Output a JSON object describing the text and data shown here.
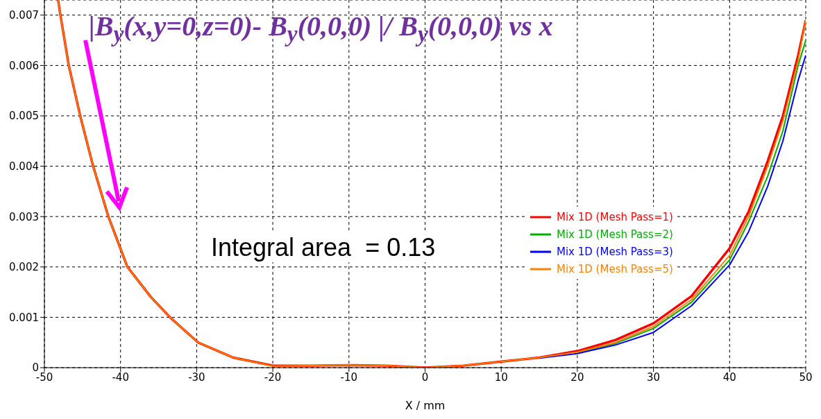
{
  "chart_data": {
    "type": "line",
    "title": "|B$_{y}$(x,y=0,z=0)- B$_{y}$(0,0,0) |/ B$_{y}$(0,0,0) vs x",
    "xlabel": "X / mm",
    "annotations": [
      "Integral area  = 0.13"
    ],
    "x": [
      -48.2,
      -47.9,
      -46.8,
      -45.3,
      -43.6,
      -41.6,
      -39.1,
      -36,
      -33.5,
      -29.8,
      -25.2,
      -20,
      -15,
      -10,
      -5,
      0,
      5,
      10,
      15,
      20,
      25,
      30,
      35,
      40,
      42.5,
      45,
      47,
      49,
      50
    ],
    "series": [
      {
        "name": "Mix 1D (Mesh Pass=1)",
        "color": "#ff0000",
        "values": [
          0.0073,
          0.007,
          0.006,
          0.005,
          0.004,
          0.003,
          0.002,
          0.0014,
          0.001,
          0.0005,
          0.0002,
          4e-05,
          4e-05,
          5e-05,
          4e-05,
          0,
          4e-05,
          0.00012,
          0.0002,
          0.00033,
          0.00055,
          0.00088,
          0.00142,
          0.00237,
          0.0031,
          0.0041,
          0.005,
          0.0062,
          0.0069
        ]
      },
      {
        "name": "Mix 1D (Mesh Pass=2)",
        "color": "#00b000",
        "values": [
          null,
          null,
          null,
          null,
          null,
          null,
          null,
          null,
          null,
          null,
          null,
          null,
          null,
          null,
          null,
          null,
          null,
          null,
          null,
          0.0003,
          0.00048,
          0.00078,
          0.0013,
          0.00214,
          0.0029,
          0.0038,
          0.0047,
          0.006,
          0.0065
        ]
      },
      {
        "name": "Mix 1D (Mesh Pass=3)",
        "color": "#0000ff",
        "values": [
          null,
          null,
          null,
          null,
          null,
          null,
          null,
          null,
          null,
          null,
          null,
          null,
          null,
          null,
          null,
          null,
          null,
          null,
          0.00019,
          0.00028,
          0.00045,
          0.0007,
          0.00123,
          0.00204,
          0.0027,
          0.0036,
          0.0045,
          0.0057,
          0.0062
        ]
      },
      {
        "name": "Mix 1D (Mesh Pass=5)",
        "color": "#ff8000",
        "values": [
          0.0073,
          0.007,
          0.006,
          0.005,
          0.004,
          0.003,
          0.002,
          0.0014,
          0.001,
          0.0005,
          0.0002,
          3e-05,
          4e-05,
          5e-05,
          4e-05,
          0,
          4e-05,
          0.00012,
          0.0002,
          0.00031,
          0.0005,
          0.00082,
          0.00135,
          0.00223,
          0.003,
          0.004,
          0.0049,
          0.0061,
          0.0069
        ]
      }
    ],
    "xlim": [
      -50,
      50
    ],
    "xticks": [
      -50,
      -40,
      -30,
      -20,
      -10,
      0,
      10,
      20,
      30,
      40,
      50
    ],
    "ylim": [
      0,
      0.0073
    ],
    "yticks": [
      0,
      0.001,
      0.002,
      0.003,
      0.004,
      0.005,
      0.006,
      0.007
    ],
    "grid": true,
    "legend": "right",
    "marker": "none",
    "line_style": "solid"
  }
}
